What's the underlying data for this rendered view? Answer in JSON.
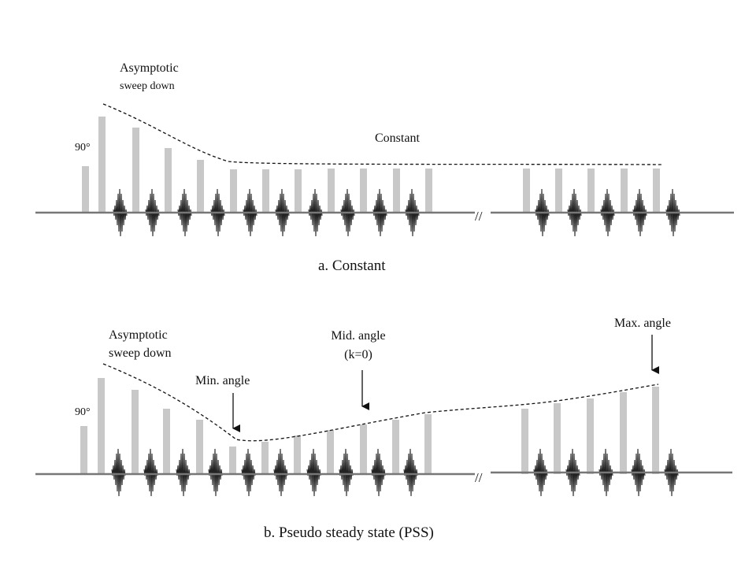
{
  "panel_a": {
    "flip_angle_label": "90°",
    "sweep_label_line1": "Asymptotic",
    "sweep_label_line2": "sweep down",
    "constant_label": "Constant",
    "caption": "a. Constant",
    "break_mark": "//"
  },
  "panel_b": {
    "flip_angle_label": "90°",
    "sweep_label_line1": "Asymptotic",
    "sweep_label_line2": "sweep  down",
    "min_angle_label": "Min. angle",
    "mid_angle_label_line1": "Mid. angle",
    "mid_angle_label_line2": "(k=0)",
    "max_angle_label": "Max. angle",
    "caption": "b. Pseudo steady state (PSS)",
    "break_mark": "//"
  },
  "colors": {
    "pulse_bar": "#c8c8c8",
    "baseline": "#777777",
    "echo": "#222222",
    "envelope": "#111111"
  }
}
